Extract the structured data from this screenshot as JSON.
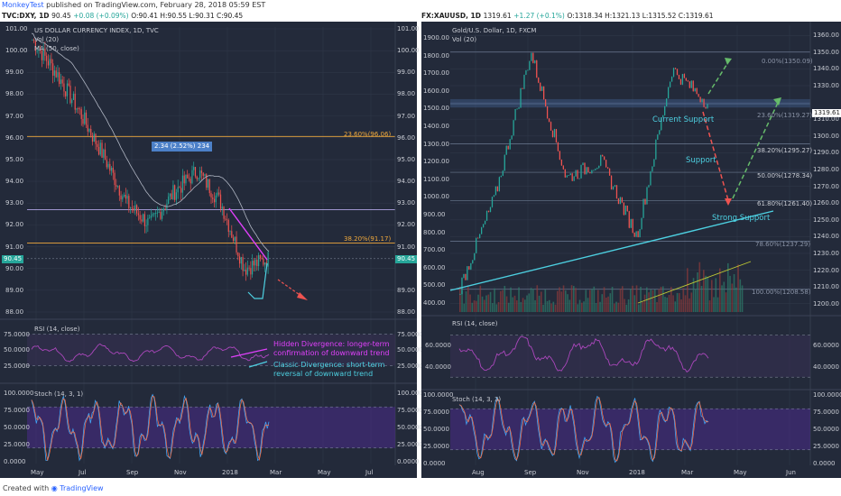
{
  "header": {
    "user": "MonkeyTest",
    "published": "published on TradingView.com, February 28, 2018 05:59 EST"
  },
  "left": {
    "ticker": "TVC:DXY, 1D",
    "price": "90.45",
    "change": "+0.08 (+0.09%)",
    "ohlc": "O:90.41 H:90.55 L:90.31 C:90.45",
    "title": "US DOLLAR CURRENCY INDEX, 1D, TVC",
    "vol": "Vol (20)",
    "ma": "MA (50, close)",
    "badge": "2.34 (2.52%) 234",
    "fib_236": "23.60%(96.06)",
    "fib_382": "38.20%(91.17)",
    "price_tag": "90.45",
    "rsi_label": "RSI (14, close)",
    "stoch_label": "Stoch (14, 3, 1)",
    "ann_hidden": "Hidden Divergence: longer-term confirmation of downward trend",
    "ann_classic": "Classic Divergence: short-term reversal of downward trend",
    "x_labels": [
      "May",
      "Jul",
      "Sep",
      "Nov",
      "2018",
      "Mar",
      "May",
      "Jul"
    ],
    "rsi_ticks": [
      "75.0000",
      "50.0000",
      "25.0000"
    ],
    "stoch_ticks": [
      "100.0000",
      "75.0000",
      "50.0000",
      "25.0000",
      "0.0000"
    ]
  },
  "right": {
    "ticker": "FX:XAUUSD, 1D",
    "price": "1319.61",
    "change": "+1.27 (+0.1%)",
    "ohlc": "O:1318.34 H:1321.13 L:1315.52 C:1319.61",
    "title": "Gold/U.S. Dollar, 1D, FXCM",
    "vol": "Vol (20)",
    "fib_0": "0.00%(1350.09)",
    "fib_236": "23.60%(1319.27)",
    "fib_382": "38.20%(1295.27)",
    "fib_50": "50.00%(1278.34)",
    "fib_618": "61.80%(1261.40)",
    "fib_786": "78.60%(1237.29)",
    "fib_100": "100.00%(1208.58)",
    "price_tag": "1319.61",
    "current_support": "Current Support",
    "support": "Support",
    "strong_support": "Strong Support",
    "rsi_label": "RSI (14, close)",
    "stoch_label": "Stoch (14, 3, 3)",
    "x_labels": [
      "Aug",
      "Sep",
      "Nov",
      "2018",
      "Mar",
      "May",
      "Jun"
    ],
    "vol_ticks": [
      "1900.00",
      "1800.00",
      "1700.00",
      "1600.00",
      "1500.00",
      "1400.00",
      "1300.00",
      "1200.00",
      "1100.00",
      "1000.00",
      "900.00",
      "800.00",
      "700.00",
      "600.00",
      "500.00",
      "400.00"
    ],
    "rsi_ticks": [
      "60.0000",
      "40.0000"
    ],
    "stoch_ticks": [
      "100.0000",
      "75.0000",
      "50.0000",
      "25.0000",
      "0.0000"
    ]
  },
  "colors": {
    "up": "#26a69a",
    "down": "#ef5350",
    "fib": "#f0a93c",
    "magenta": "#e040fb",
    "cyan": "#4dd0e1",
    "rsi": "#9c27b0"
  },
  "chart_data": [
    {
      "type": "line",
      "title": "US DOLLAR CURRENCY INDEX, 1D, TVC",
      "series": [
        {
          "name": "DXY close",
          "x": [
            "2017-04",
            "2017-05",
            "2017-06",
            "2017-07",
            "2017-08",
            "2017-09",
            "2017-10",
            "2017-11",
            "2017-12",
            "2018-01",
            "2018-02"
          ],
          "values": [
            100.5,
            99.0,
            97.2,
            95.2,
            93.0,
            92.0,
            93.5,
            94.5,
            93.0,
            90.0,
            90.45
          ]
        }
      ],
      "ylim": [
        88,
        101
      ],
      "y_ticks": [
        101,
        100,
        99,
        98,
        97,
        96,
        95,
        94,
        93,
        92,
        91,
        90,
        89,
        88
      ],
      "annotations": [
        "23.60%(96.06)",
        "38.20%(91.17)"
      ]
    },
    {
      "type": "line",
      "title": "Gold/U.S. Dollar, 1D, FXCM",
      "series": [
        {
          "name": "XAUUSD close",
          "x": [
            "2017-07",
            "2017-08",
            "2017-09",
            "2017-10",
            "2017-11",
            "2017-12",
            "2018-01",
            "2018-02"
          ],
          "values": [
            1210,
            1265,
            1350,
            1275,
            1285,
            1240,
            1340,
            1319.61
          ]
        }
      ],
      "ylim": [
        1195,
        1365
      ],
      "y_ticks": [
        1360,
        1350,
        1340,
        1330,
        1320,
        1310,
        1300,
        1290,
        1280,
        1270,
        1260,
        1250,
        1240,
        1230,
        1220,
        1210,
        1200
      ],
      "annotations": [
        "0.00%(1350.09)",
        "23.60%(1319.27)",
        "38.20%(1295.27)",
        "50.00%(1278.34)",
        "61.80%(1261.40)",
        "78.60%(1237.29)",
        "100.00%(1208.58)"
      ]
    }
  ]
}
